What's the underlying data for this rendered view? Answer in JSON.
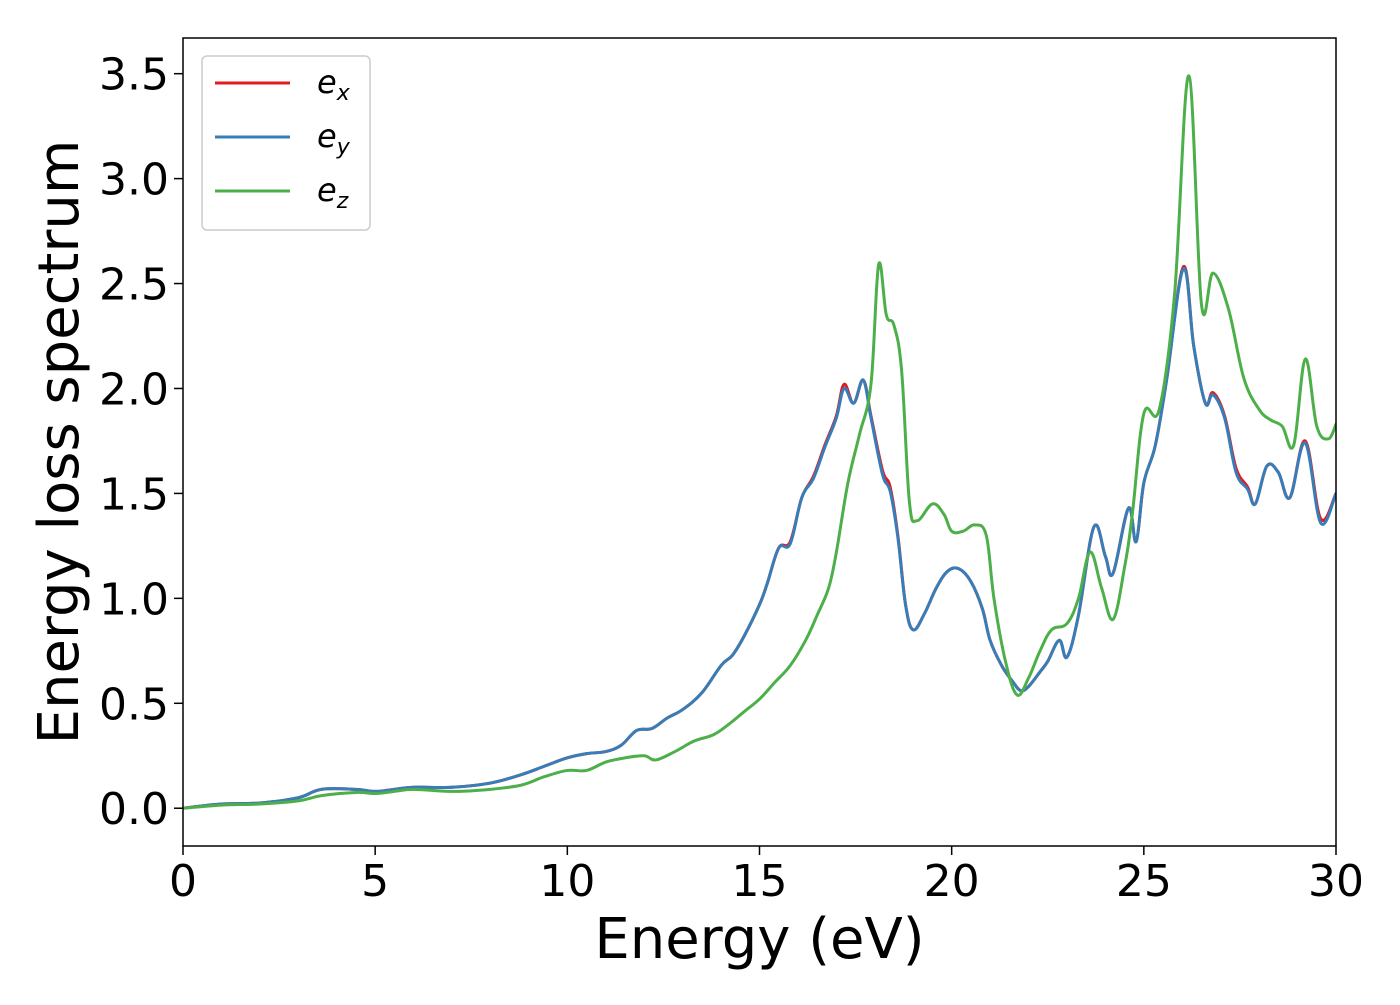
{
  "chart_data": {
    "type": "line",
    "title": "",
    "xlabel": "Energy (eV)",
    "ylabel": "Energy loss spectrum",
    "xlim": [
      0,
      30
    ],
    "ylim": [
      -0.18,
      3.67
    ],
    "xticks": [
      0,
      5,
      10,
      15,
      20,
      25,
      30
    ],
    "xtick_labels": [
      "0",
      "5",
      "10",
      "15",
      "20",
      "25",
      "30"
    ],
    "yticks": [
      0.0,
      0.5,
      1.0,
      1.5,
      2.0,
      2.5,
      3.0,
      3.5
    ],
    "ytick_labels": [
      "0.0",
      "0.5",
      "1.0",
      "1.5",
      "2.0",
      "2.5",
      "3.0",
      "3.5"
    ],
    "grid": false,
    "legend_position": "top-left",
    "series": [
      {
        "name": "e_x",
        "legend_base": "e",
        "legend_sub": "x",
        "color": "#e41a1c",
        "points": [
          [
            0,
            0
          ],
          [
            1,
            0.02
          ],
          [
            2,
            0.025
          ],
          [
            3,
            0.05
          ],
          [
            3.6,
            0.09
          ],
          [
            4.5,
            0.09
          ],
          [
            5,
            0.08
          ],
          [
            5.5,
            0.09
          ],
          [
            6,
            0.1
          ],
          [
            7,
            0.1
          ],
          [
            8,
            0.12
          ],
          [
            8.8,
            0.16
          ],
          [
            9.4,
            0.2
          ],
          [
            10,
            0.24
          ],
          [
            10.5,
            0.26
          ],
          [
            11,
            0.27
          ],
          [
            11.4,
            0.3
          ],
          [
            11.8,
            0.37
          ],
          [
            12.2,
            0.38
          ],
          [
            12.6,
            0.43
          ],
          [
            13,
            0.47
          ],
          [
            13.5,
            0.55
          ],
          [
            14,
            0.68
          ],
          [
            14.3,
            0.73
          ],
          [
            14.6,
            0.82
          ],
          [
            15,
            0.97
          ],
          [
            15.2,
            1.07
          ],
          [
            15.5,
            1.24
          ],
          [
            15.8,
            1.27
          ],
          [
            16.1,
            1.48
          ],
          [
            16.4,
            1.58
          ],
          [
            16.7,
            1.73
          ],
          [
            17,
            1.87
          ],
          [
            17.2,
            2.02
          ],
          [
            17.45,
            1.93
          ],
          [
            17.7,
            2.04
          ],
          [
            17.9,
            1.87
          ],
          [
            18.2,
            1.61
          ],
          [
            18.4,
            1.53
          ],
          [
            18.6,
            1.3
          ],
          [
            18.8,
            0.97
          ],
          [
            19,
            0.85
          ],
          [
            19.3,
            0.93
          ],
          [
            19.6,
            1.05
          ],
          [
            19.9,
            1.13
          ],
          [
            20.2,
            1.14
          ],
          [
            20.5,
            1.08
          ],
          [
            20.8,
            0.95
          ],
          [
            21,
            0.8
          ],
          [
            21.3,
            0.68
          ],
          [
            21.6,
            0.6
          ],
          [
            21.8,
            0.56
          ],
          [
            22,
            0.58
          ],
          [
            22.3,
            0.65
          ],
          [
            22.5,
            0.7
          ],
          [
            22.8,
            0.8
          ],
          [
            23,
            0.72
          ],
          [
            23.3,
            0.92
          ],
          [
            23.7,
            1.34
          ],
          [
            24,
            1.2
          ],
          [
            24.2,
            1.12
          ],
          [
            24.6,
            1.43
          ],
          [
            24.8,
            1.27
          ],
          [
            25,
            1.55
          ],
          [
            25.3,
            1.73
          ],
          [
            25.6,
            2.05
          ],
          [
            26.03,
            2.58
          ],
          [
            26.3,
            2.2
          ],
          [
            26.6,
            1.93
          ],
          [
            26.8,
            1.98
          ],
          [
            27.1,
            1.87
          ],
          [
            27.4,
            1.62
          ],
          [
            27.7,
            1.53
          ],
          [
            27.9,
            1.45
          ],
          [
            28.2,
            1.63
          ],
          [
            28.5,
            1.6
          ],
          [
            28.8,
            1.48
          ],
          [
            29.2,
            1.75
          ],
          [
            29.6,
            1.38
          ],
          [
            30,
            1.5
          ]
        ]
      },
      {
        "name": "e_y",
        "legend_base": "e",
        "legend_sub": "y",
        "color": "#377eb8",
        "points": [
          [
            0,
            0
          ],
          [
            1,
            0.02
          ],
          [
            2,
            0.025
          ],
          [
            3,
            0.05
          ],
          [
            3.6,
            0.09
          ],
          [
            4.5,
            0.09
          ],
          [
            5,
            0.08
          ],
          [
            5.5,
            0.09
          ],
          [
            6,
            0.1
          ],
          [
            7,
            0.1
          ],
          [
            8,
            0.12
          ],
          [
            8.8,
            0.16
          ],
          [
            9.4,
            0.2
          ],
          [
            10,
            0.24
          ],
          [
            10.5,
            0.26
          ],
          [
            11,
            0.27
          ],
          [
            11.4,
            0.3
          ],
          [
            11.8,
            0.37
          ],
          [
            12.2,
            0.38
          ],
          [
            12.6,
            0.43
          ],
          [
            13,
            0.47
          ],
          [
            13.5,
            0.55
          ],
          [
            14,
            0.68
          ],
          [
            14.3,
            0.73
          ],
          [
            14.6,
            0.82
          ],
          [
            15,
            0.97
          ],
          [
            15.2,
            1.07
          ],
          [
            15.5,
            1.24
          ],
          [
            15.8,
            1.26
          ],
          [
            16.1,
            1.48
          ],
          [
            16.4,
            1.57
          ],
          [
            16.7,
            1.72
          ],
          [
            17,
            1.86
          ],
          [
            17.2,
            2.0
          ],
          [
            17.45,
            1.93
          ],
          [
            17.7,
            2.04
          ],
          [
            17.9,
            1.86
          ],
          [
            18.2,
            1.59
          ],
          [
            18.4,
            1.51
          ],
          [
            18.6,
            1.29
          ],
          [
            18.8,
            0.97
          ],
          [
            19,
            0.85
          ],
          [
            19.3,
            0.93
          ],
          [
            19.6,
            1.05
          ],
          [
            19.9,
            1.13
          ],
          [
            20.2,
            1.14
          ],
          [
            20.5,
            1.08
          ],
          [
            20.8,
            0.95
          ],
          [
            21,
            0.8
          ],
          [
            21.3,
            0.68
          ],
          [
            21.6,
            0.6
          ],
          [
            21.8,
            0.56
          ],
          [
            22,
            0.58
          ],
          [
            22.3,
            0.65
          ],
          [
            22.5,
            0.7
          ],
          [
            22.8,
            0.8
          ],
          [
            23,
            0.72
          ],
          [
            23.3,
            0.92
          ],
          [
            23.7,
            1.34
          ],
          [
            24,
            1.2
          ],
          [
            24.2,
            1.12
          ],
          [
            24.6,
            1.43
          ],
          [
            24.8,
            1.27
          ],
          [
            25,
            1.55
          ],
          [
            25.3,
            1.73
          ],
          [
            25.6,
            2.05
          ],
          [
            26.03,
            2.57
          ],
          [
            26.3,
            2.2
          ],
          [
            26.6,
            1.93
          ],
          [
            26.8,
            1.97
          ],
          [
            27.1,
            1.86
          ],
          [
            27.4,
            1.6
          ],
          [
            27.7,
            1.52
          ],
          [
            27.9,
            1.45
          ],
          [
            28.2,
            1.63
          ],
          [
            28.5,
            1.6
          ],
          [
            28.8,
            1.48
          ],
          [
            29.2,
            1.74
          ],
          [
            29.6,
            1.36
          ],
          [
            30,
            1.5
          ]
        ]
      },
      {
        "name": "e_z",
        "legend_base": "e",
        "legend_sub": "z",
        "color": "#4daf4a",
        "points": [
          [
            0,
            0
          ],
          [
            1,
            0.015
          ],
          [
            2,
            0.02
          ],
          [
            3,
            0.035
          ],
          [
            3.6,
            0.06
          ],
          [
            4.5,
            0.075
          ],
          [
            5,
            0.07
          ],
          [
            5.5,
            0.08
          ],
          [
            6,
            0.09
          ],
          [
            7,
            0.08
          ],
          [
            8,
            0.09
          ],
          [
            8.8,
            0.11
          ],
          [
            9.4,
            0.15
          ],
          [
            10,
            0.18
          ],
          [
            10.5,
            0.18
          ],
          [
            11,
            0.22
          ],
          [
            11.5,
            0.24
          ],
          [
            12,
            0.25
          ],
          [
            12.3,
            0.23
          ],
          [
            12.8,
            0.27
          ],
          [
            13.3,
            0.32
          ],
          [
            13.8,
            0.35
          ],
          [
            14.2,
            0.4
          ],
          [
            14.6,
            0.46
          ],
          [
            15,
            0.52
          ],
          [
            15.4,
            0.6
          ],
          [
            15.8,
            0.68
          ],
          [
            16.2,
            0.8
          ],
          [
            16.5,
            0.92
          ],
          [
            16.8,
            1.05
          ],
          [
            17,
            1.22
          ],
          [
            17.3,
            1.55
          ],
          [
            17.6,
            1.78
          ],
          [
            17.9,
            2.02
          ],
          [
            18.1,
            2.59
          ],
          [
            18.3,
            2.35
          ],
          [
            18.5,
            2.3
          ],
          [
            18.7,
            2.08
          ],
          [
            18.9,
            1.46
          ],
          [
            19.1,
            1.37
          ],
          [
            19.5,
            1.45
          ],
          [
            19.8,
            1.4
          ],
          [
            20,
            1.32
          ],
          [
            20.3,
            1.32
          ],
          [
            20.6,
            1.35
          ],
          [
            20.9,
            1.3
          ],
          [
            21.1,
            1.0
          ],
          [
            21.4,
            0.7
          ],
          [
            21.7,
            0.54
          ],
          [
            22,
            0.62
          ],
          [
            22.3,
            0.75
          ],
          [
            22.6,
            0.85
          ],
          [
            23,
            0.88
          ],
          [
            23.3,
            1.0
          ],
          [
            23.6,
            1.22
          ],
          [
            23.9,
            1.05
          ],
          [
            24.2,
            0.9
          ],
          [
            24.5,
            1.15
          ],
          [
            24.7,
            1.4
          ],
          [
            25,
            1.88
          ],
          [
            25.4,
            1.9
          ],
          [
            25.8,
            2.45
          ],
          [
            26.17,
            3.49
          ],
          [
            26.5,
            2.4
          ],
          [
            26.8,
            2.55
          ],
          [
            27.2,
            2.38
          ],
          [
            27.6,
            2.05
          ],
          [
            28,
            1.9
          ],
          [
            28.3,
            1.85
          ],
          [
            28.6,
            1.82
          ],
          [
            28.9,
            1.73
          ],
          [
            29.2,
            2.14
          ],
          [
            29.5,
            1.82
          ],
          [
            29.8,
            1.76
          ],
          [
            30,
            1.83
          ]
        ]
      }
    ]
  }
}
